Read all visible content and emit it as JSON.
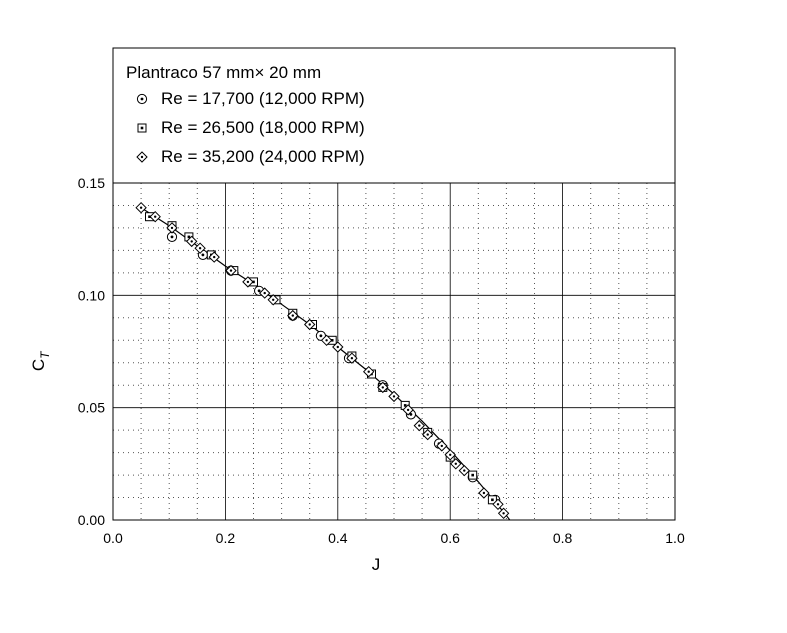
{
  "chart_data": {
    "type": "scatter",
    "title": "Plantraco 57 mm× 20 mm",
    "xlabel": "J",
    "ylabel_main": "C",
    "ylabel_sub": "T",
    "xlim": [
      0.0,
      1.0
    ],
    "ylim": [
      0.0,
      0.15
    ],
    "x_major_ticks": [
      "0.0",
      "0.2",
      "0.4",
      "0.6",
      "0.8",
      "1.0"
    ],
    "y_major_ticks": [
      "0.00",
      "0.05",
      "0.10",
      "0.15"
    ],
    "grid": "major solid, minor dotted",
    "legend_position": "top-left",
    "series": [
      {
        "name": "Re = 17,700 (12,000 RPM)",
        "marker": "circle-dot",
        "points": [
          [
            0.105,
            0.126
          ],
          [
            0.16,
            0.118
          ],
          [
            0.21,
            0.111
          ],
          [
            0.26,
            0.102
          ],
          [
            0.32,
            0.091
          ],
          [
            0.37,
            0.082
          ],
          [
            0.42,
            0.072
          ],
          [
            0.48,
            0.06
          ],
          [
            0.53,
            0.047
          ],
          [
            0.58,
            0.034
          ],
          [
            0.64,
            0.019
          ],
          [
            0.68,
            0.009
          ]
        ]
      },
      {
        "name": "Re = 26,500 (18,000 RPM)",
        "marker": "square-dot",
        "points": [
          [
            0.065,
            0.135
          ],
          [
            0.105,
            0.131
          ],
          [
            0.135,
            0.126
          ],
          [
            0.175,
            0.118
          ],
          [
            0.215,
            0.111
          ],
          [
            0.25,
            0.106
          ],
          [
            0.29,
            0.098
          ],
          [
            0.32,
            0.092
          ],
          [
            0.355,
            0.087
          ],
          [
            0.39,
            0.08
          ],
          [
            0.425,
            0.073
          ],
          [
            0.46,
            0.065
          ],
          [
            0.48,
            0.059
          ],
          [
            0.52,
            0.051
          ],
          [
            0.56,
            0.039
          ],
          [
            0.6,
            0.028
          ],
          [
            0.64,
            0.02
          ],
          [
            0.675,
            0.009
          ]
        ]
      },
      {
        "name": "Re = 35,200 (24,000 RPM)",
        "marker": "diamond-dot",
        "points": [
          [
            0.05,
            0.139
          ],
          [
            0.075,
            0.135
          ],
          [
            0.105,
            0.13
          ],
          [
            0.14,
            0.124
          ],
          [
            0.155,
            0.121
          ],
          [
            0.18,
            0.117
          ],
          [
            0.21,
            0.111
          ],
          [
            0.24,
            0.106
          ],
          [
            0.27,
            0.101
          ],
          [
            0.285,
            0.098
          ],
          [
            0.32,
            0.091
          ],
          [
            0.35,
            0.087
          ],
          [
            0.38,
            0.08
          ],
          [
            0.4,
            0.077
          ],
          [
            0.425,
            0.072
          ],
          [
            0.455,
            0.066
          ],
          [
            0.48,
            0.059
          ],
          [
            0.5,
            0.055
          ],
          [
            0.525,
            0.049
          ],
          [
            0.545,
            0.042
          ],
          [
            0.56,
            0.038
          ],
          [
            0.585,
            0.033
          ],
          [
            0.6,
            0.029
          ],
          [
            0.61,
            0.025
          ],
          [
            0.625,
            0.022
          ],
          [
            0.66,
            0.012
          ],
          [
            0.685,
            0.007
          ],
          [
            0.695,
            0.003
          ]
        ]
      }
    ],
    "fit_line": [
      [
        0.05,
        0.139
      ],
      [
        0.1,
        0.131
      ],
      [
        0.15,
        0.122
      ],
      [
        0.2,
        0.113
      ],
      [
        0.25,
        0.105
      ],
      [
        0.3,
        0.096
      ],
      [
        0.35,
        0.087
      ],
      [
        0.4,
        0.077
      ],
      [
        0.45,
        0.067
      ],
      [
        0.5,
        0.056
      ],
      [
        0.55,
        0.044
      ],
      [
        0.6,
        0.031
      ],
      [
        0.65,
        0.017
      ],
      [
        0.7,
        0.002
      ],
      [
        0.706,
        0.0
      ]
    ]
  }
}
